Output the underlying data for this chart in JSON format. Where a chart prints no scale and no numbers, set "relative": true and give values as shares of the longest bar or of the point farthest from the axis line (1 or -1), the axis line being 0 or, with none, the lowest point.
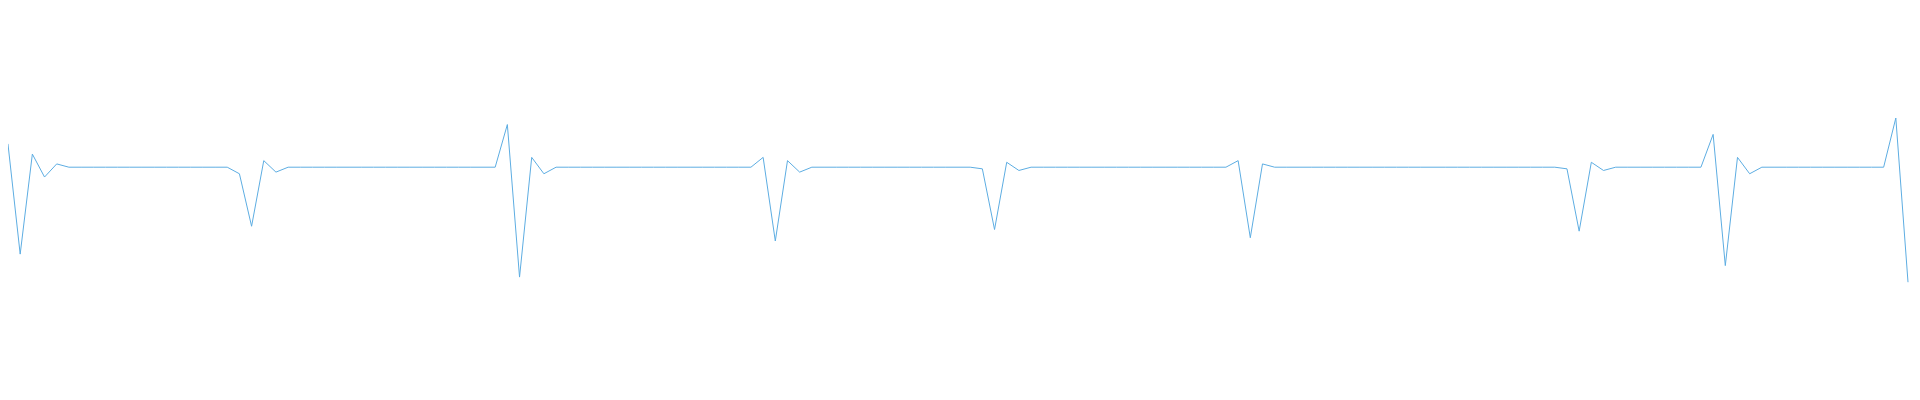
{
  "chart_data": {
    "type": "line",
    "relative": true,
    "marker": "none",
    "categories": [
      null,
      null,
      null,
      null,
      null,
      null,
      null,
      null,
      null,
      null,
      null,
      null,
      null,
      null,
      null,
      null,
      null,
      null,
      null,
      null,
      null,
      null,
      null,
      null,
      null,
      null,
      null,
      null,
      null,
      null,
      null,
      null,
      null,
      null,
      null,
      null,
      null,
      null,
      null,
      null,
      null,
      null,
      null,
      null,
      null,
      null,
      null,
      null,
      null,
      null,
      null,
      null,
      null,
      null,
      null,
      null,
      null,
      null,
      null,
      null,
      null,
      null,
      null,
      null,
      null,
      null,
      null,
      null,
      null,
      null,
      null,
      null,
      null,
      null,
      null,
      null,
      null,
      null,
      null,
      null,
      null,
      null,
      null,
      null,
      null,
      null,
      null,
      null,
      null,
      null,
      null,
      null,
      null,
      null,
      null,
      null,
      null,
      null,
      null,
      null,
      null,
      null,
      null,
      null,
      null,
      null,
      null,
      null,
      null,
      null,
      null,
      null,
      null,
      null,
      null,
      null,
      null,
      null,
      null,
      null,
      null,
      null,
      null,
      null,
      null,
      null,
      null,
      null,
      null,
      null,
      null,
      null,
      null,
      null,
      null,
      null,
      null,
      null,
      null,
      null,
      null,
      null,
      null,
      null,
      null,
      null,
      null,
      null,
      null,
      null,
      null,
      null,
      null,
      null,
      null,
      null,
      null
    ],
    "series": [
      {
        "color": "#5dade2",
        "values": [
          0.84,
          0.17,
          0.78,
          0.64,
          0.72,
          0.7,
          0.7,
          0.7,
          0.7,
          0.7,
          0.7,
          0.7,
          0.7,
          0.7,
          0.7,
          0.7,
          0.7,
          0.7,
          0.7,
          0.66,
          0.34,
          0.74,
          0.67,
          0.7,
          0.7,
          0.7,
          0.7,
          0.7,
          0.7,
          0.7,
          0.7,
          0.7,
          0.7,
          0.7,
          0.7,
          0.7,
          0.7,
          0.7,
          0.7,
          0.7,
          0.7,
          0.96,
          0.03,
          0.76,
          0.66,
          0.7,
          0.7,
          0.7,
          0.7,
          0.7,
          0.7,
          0.7,
          0.7,
          0.7,
          0.7,
          0.7,
          0.7,
          0.7,
          0.7,
          0.7,
          0.7,
          0.7,
          0.76,
          0.25,
          0.74,
          0.67,
          0.7,
          0.7,
          0.7,
          0.7,
          0.7,
          0.7,
          0.7,
          0.7,
          0.7,
          0.7,
          0.7,
          0.7,
          0.7,
          0.7,
          0.69,
          0.32,
          0.73,
          0.68,
          0.7,
          0.7,
          0.7,
          0.7,
          0.7,
          0.7,
          0.7,
          0.7,
          0.7,
          0.7,
          0.7,
          0.7,
          0.7,
          0.7,
          0.7,
          0.7,
          0.7,
          0.74,
          0.27,
          0.72,
          0.7,
          0.7,
          0.7,
          0.7,
          0.7,
          0.7,
          0.7,
          0.7,
          0.7,
          0.7,
          0.7,
          0.7,
          0.7,
          0.7,
          0.7,
          0.7,
          0.7,
          0.7,
          0.7,
          0.7,
          0.7,
          0.7,
          0.7,
          0.7,
          0.69,
          0.31,
          0.73,
          0.68,
          0.7,
          0.7,
          0.7,
          0.7,
          0.7,
          0.7,
          0.7,
          0.7,
          0.9,
          0.1,
          0.76,
          0.66,
          0.7,
          0.7,
          0.7,
          0.7,
          0.7,
          0.7,
          0.7,
          0.7,
          0.7,
          0.7,
          0.7,
          1,
          0
        ]
      }
    ]
  }
}
